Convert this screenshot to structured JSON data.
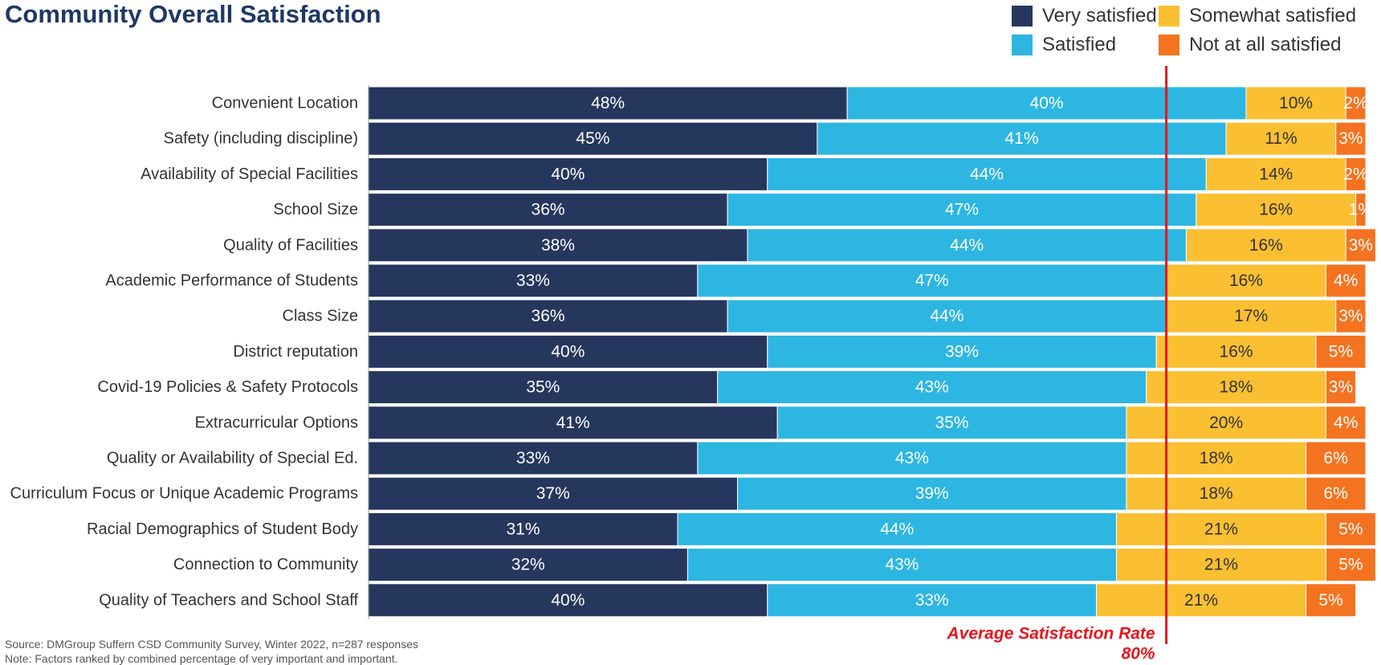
{
  "chart_data": {
    "type": "bar",
    "orientation": "horizontal",
    "stacked": true,
    "title": "Community Overall Satisfaction",
    "categories": [
      "Convenient Location",
      "Safety (including discipline)",
      "Availability of Special Facilities",
      "School Size",
      "Quality of Facilities",
      "Academic Performance of Students",
      "Class Size",
      "District reputation",
      "Covid-19 Policies & Safety Protocols",
      "Extracurricular Options",
      "Quality or Availability of Special Ed.",
      "Curriculum Focus or Unique Academic Programs",
      "Racial Demographics of Student Body",
      "Connection to Community",
      "Quality of Teachers and School Staff"
    ],
    "series": [
      {
        "name": "Very satisfied",
        "color": "#26375e",
        "label_color": "#ffffff",
        "values": [
          48,
          45,
          40,
          36,
          38,
          33,
          36,
          40,
          35,
          41,
          33,
          37,
          31,
          32,
          40
        ]
      },
      {
        "name": "Satisfied",
        "color": "#2db6e2",
        "label_color": "#ffffff",
        "values": [
          40,
          41,
          44,
          47,
          44,
          47,
          44,
          39,
          43,
          35,
          43,
          39,
          44,
          43,
          33
        ]
      },
      {
        "name": "Somewhat satisfied",
        "color": "#fbbf32",
        "label_color": "#333333",
        "values": [
          10,
          11,
          14,
          16,
          16,
          16,
          17,
          16,
          18,
          20,
          18,
          18,
          21,
          21,
          21
        ]
      },
      {
        "name": "Not at all satisfied",
        "color": "#f47320",
        "label_color": "#ffffff",
        "values": [
          2,
          3,
          2,
          1,
          3,
          4,
          3,
          5,
          3,
          4,
          6,
          6,
          5,
          5,
          5
        ]
      }
    ],
    "value_suffix": "%",
    "xlim": [
      0,
      100
    ],
    "legend_position": "top-right",
    "reference_line": {
      "value": 80,
      "color": "#e8141c",
      "label": "Average Satisfaction Rate",
      "value_label": "80%"
    }
  },
  "footnotes": {
    "source": "Source: DMGroup Suffern CSD Community Survey, Winter 2022, n=287 responses",
    "note": "Note: Factors ranked by combined percentage of very important and important."
  }
}
